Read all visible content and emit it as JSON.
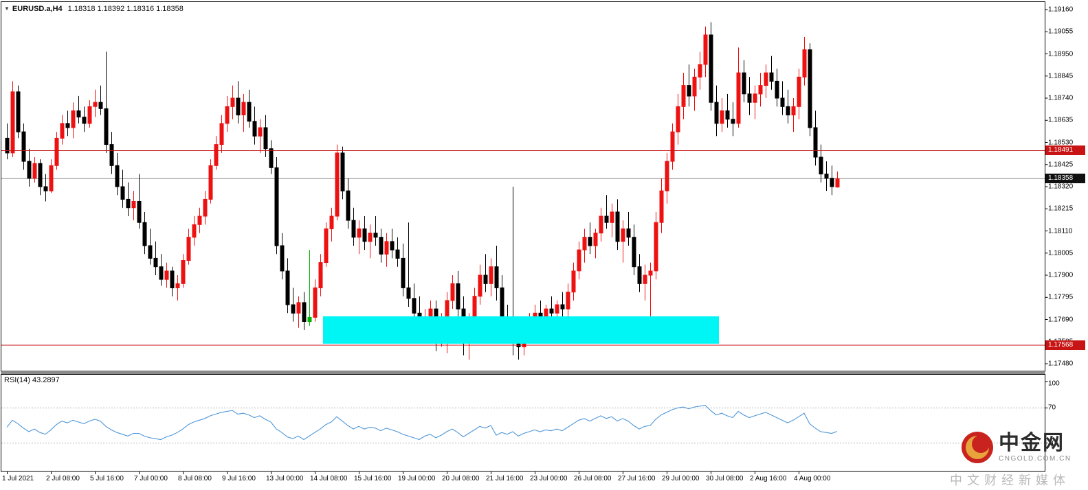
{
  "header": {
    "collapse_icon": "▼",
    "symbol": "EURUSD.a,H4",
    "ohlc": "1.18318 1.18392 1.18316 1.18358"
  },
  "chart_data": {
    "type": "candlestick",
    "title": "EURUSD.a H4 chart with RSI(14)",
    "y_range": [
      1.1748,
      1.1916
    ],
    "price_labels": [
      "1.19160",
      "1.19055",
      "1.18950",
      "1.18845",
      "1.18740",
      "1.18635",
      "1.18530",
      "1.18425",
      "1.18320",
      "1.18215",
      "1.18110",
      "1.18005",
      "1.17900",
      "1.17795",
      "1.17690",
      "1.17585",
      "1.17480"
    ],
    "price_badges": [
      {
        "name": "price-badge-resistance",
        "text": "1.18491",
        "color": "#C81414"
      },
      {
        "name": "price-badge-current",
        "text": "1.18358",
        "color": "#101010"
      },
      {
        "name": "price-badge-support",
        "text": "1.17568",
        "color": "#C81414"
      }
    ],
    "x_labels": [
      "1 Jul 2021",
      "2 Jul 08:00",
      "5 Jul 16:00",
      "7 Jul 00:00",
      "8 Jul 08:00",
      "9 Jul 16:00",
      "13 Jul 00:00",
      "14 Jul 08:00",
      "15 Jul 16:00",
      "19 Jul 00:00",
      "20 Jul 08:00",
      "21 Jul 16:00",
      "23 Jul 00:00",
      "26 Jul 08:00",
      "27 Jul 16:00",
      "29 Jul 00:00",
      "30 Jul 08:00",
      "2 Aug 16:00",
      "4 Aug 00:00"
    ],
    "x_label_step": 8,
    "up_color": "#EE1111",
    "down_color": "#000000",
    "special_colors": {
      "55": "#00B400"
    },
    "hlines": [
      {
        "role": "resistance",
        "value": 1.18491,
        "color": "#C81414"
      },
      {
        "role": "support",
        "value": 1.17568,
        "color": "#C81414"
      },
      {
        "role": "current",
        "value": 1.18358,
        "color": "#8A8A8A"
      }
    ],
    "zone": {
      "start_index": 58,
      "end_index": 129,
      "top": 1.17705,
      "bottom": 1.17575,
      "color": "#00F5F5"
    },
    "candles": [
      [
        1.1855,
        1.1862,
        1.1845,
        1.1848
      ],
      [
        1.1848,
        1.1882,
        1.1846,
        1.1877
      ],
      [
        1.1877,
        1.188,
        1.1855,
        1.1858
      ],
      [
        1.1858,
        1.1862,
        1.184,
        1.1844
      ],
      [
        1.1844,
        1.185,
        1.1832,
        1.1836
      ],
      [
        1.1836,
        1.1846,
        1.1834,
        1.1843
      ],
      [
        1.1843,
        1.1845,
        1.1828,
        1.1832
      ],
      [
        1.1832,
        1.1838,
        1.1825,
        1.183
      ],
      [
        1.183,
        1.1845,
        1.1829,
        1.1842
      ],
      [
        1.1842,
        1.1858,
        1.184,
        1.1855
      ],
      [
        1.1855,
        1.1866,
        1.1852,
        1.1862
      ],
      [
        1.1862,
        1.1868,
        1.1856,
        1.186
      ],
      [
        1.186,
        1.1872,
        1.1855,
        1.1868
      ],
      [
        1.1868,
        1.1875,
        1.1862,
        1.1865
      ],
      [
        1.1865,
        1.187,
        1.1858,
        1.1862
      ],
      [
        1.1862,
        1.1873,
        1.186,
        1.187
      ],
      [
        1.187,
        1.1878,
        1.1865,
        1.1872
      ],
      [
        1.1872,
        1.188,
        1.1866,
        1.1869
      ],
      [
        1.1869,
        1.1896,
        1.1848,
        1.1852
      ],
      [
        1.1852,
        1.1858,
        1.1838,
        1.1842
      ],
      [
        1.1842,
        1.1848,
        1.1828,
        1.1832
      ],
      [
        1.1832,
        1.184,
        1.1822,
        1.1826
      ],
      [
        1.1826,
        1.1834,
        1.1818,
        1.1822
      ],
      [
        1.1822,
        1.183,
        1.1816,
        1.1825
      ],
      [
        1.1825,
        1.1838,
        1.1812,
        1.1815
      ],
      [
        1.1815,
        1.182,
        1.18,
        1.1804
      ],
      [
        1.1804,
        1.1812,
        1.1795,
        1.1798
      ],
      [
        1.1798,
        1.1806,
        1.179,
        1.1794
      ],
      [
        1.1794,
        1.18,
        1.1785,
        1.1788
      ],
      [
        1.1788,
        1.1796,
        1.1784,
        1.1792
      ],
      [
        1.1792,
        1.1794,
        1.178,
        1.1784
      ],
      [
        1.1784,
        1.179,
        1.1778,
        1.1786
      ],
      [
        1.1786,
        1.18,
        1.1784,
        1.1797
      ],
      [
        1.1797,
        1.1812,
        1.1795,
        1.1808
      ],
      [
        1.1808,
        1.1818,
        1.1804,
        1.1814
      ],
      [
        1.1814,
        1.1822,
        1.181,
        1.1818
      ],
      [
        1.1818,
        1.183,
        1.1814,
        1.1826
      ],
      [
        1.1826,
        1.1845,
        1.1824,
        1.1842
      ],
      [
        1.1842,
        1.1856,
        1.184,
        1.1852
      ],
      [
        1.1852,
        1.1866,
        1.1848,
        1.1862
      ],
      [
        1.1862,
        1.1875,
        1.1858,
        1.187
      ],
      [
        1.187,
        1.188,
        1.1864,
        1.1874
      ],
      [
        1.1874,
        1.1882,
        1.1862,
        1.1866
      ],
      [
        1.1866,
        1.1876,
        1.1858,
        1.1872
      ],
      [
        1.1872,
        1.1878,
        1.186,
        1.1863
      ],
      [
        1.1863,
        1.187,
        1.1852,
        1.1856
      ],
      [
        1.1856,
        1.1864,
        1.1848,
        1.186
      ],
      [
        1.186,
        1.1866,
        1.1846,
        1.185
      ],
      [
        1.185,
        1.1854,
        1.1838,
        1.1841
      ],
      [
        1.1841,
        1.1846,
        1.18,
        1.1804
      ],
      [
        1.1804,
        1.181,
        1.1788,
        1.1792
      ],
      [
        1.1792,
        1.1798,
        1.1772,
        1.1776
      ],
      [
        1.1776,
        1.1784,
        1.1768,
        1.1772
      ],
      [
        1.1772,
        1.178,
        1.1765,
        1.1777
      ],
      [
        1.1777,
        1.1782,
        1.1764,
        1.1768
      ],
      [
        1.1768,
        1.1802,
        1.1766,
        1.177
      ],
      [
        1.177,
        1.1788,
        1.1768,
        1.1784
      ],
      [
        1.1784,
        1.18,
        1.178,
        1.1796
      ],
      [
        1.1796,
        1.1815,
        1.1794,
        1.1812
      ],
      [
        1.1812,
        1.1822,
        1.1806,
        1.1818
      ],
      [
        1.1818,
        1.1852,
        1.1816,
        1.1848
      ],
      [
        1.1848,
        1.1851,
        1.1826,
        1.183
      ],
      [
        1.183,
        1.1836,
        1.1812,
        1.1816
      ],
      [
        1.1816,
        1.1822,
        1.1804,
        1.1808
      ],
      [
        1.1808,
        1.1816,
        1.18,
        1.1812
      ],
      [
        1.1812,
        1.1818,
        1.1802,
        1.1806
      ],
      [
        1.1806,
        1.1814,
        1.1798,
        1.181
      ],
      [
        1.181,
        1.1818,
        1.1804,
        1.1808
      ],
      [
        1.1808,
        1.1812,
        1.1796,
        1.18
      ],
      [
        1.18,
        1.181,
        1.1794,
        1.1806
      ],
      [
        1.1806,
        1.1812,
        1.1798,
        1.1802
      ],
      [
        1.1802,
        1.1808,
        1.1794,
        1.1798
      ],
      [
        1.1798,
        1.1805,
        1.178,
        1.1784
      ],
      [
        1.1784,
        1.1815,
        1.1775,
        1.1779
      ],
      [
        1.1779,
        1.1786,
        1.1768,
        1.1772
      ],
      [
        1.1772,
        1.178,
        1.1762,
        1.1766
      ],
      [
        1.1766,
        1.1774,
        1.1758,
        1.177
      ],
      [
        1.177,
        1.1778,
        1.1764,
        1.1774
      ],
      [
        1.1774,
        1.1778,
        1.1754,
        1.176
      ],
      [
        1.176,
        1.1772,
        1.1756,
        1.1768
      ],
      [
        1.1768,
        1.1782,
        1.1753,
        1.1778
      ],
      [
        1.1778,
        1.179,
        1.1774,
        1.1786
      ],
      [
        1.1786,
        1.1792,
        1.177,
        1.1774
      ],
      [
        1.1774,
        1.178,
        1.1752,
        1.1758
      ],
      [
        1.1758,
        1.1772,
        1.175,
        1.1768
      ],
      [
        1.1768,
        1.1784,
        1.1764,
        1.178
      ],
      [
        1.178,
        1.1795,
        1.1776,
        1.179
      ],
      [
        1.179,
        1.18,
        1.1782,
        1.1786
      ],
      [
        1.1786,
        1.1798,
        1.178,
        1.1794
      ],
      [
        1.1794,
        1.1804,
        1.1778,
        1.1784
      ],
      [
        1.1784,
        1.179,
        1.1762,
        1.1768
      ],
      [
        1.1768,
        1.1776,
        1.176,
        1.1764
      ],
      [
        1.1764,
        1.1832,
        1.1752,
        1.176
      ],
      [
        1.176,
        1.177,
        1.175,
        1.1756
      ],
      [
        1.1756,
        1.1768,
        1.1752,
        1.1764
      ],
      [
        1.1764,
        1.1772,
        1.1758,
        1.1768
      ],
      [
        1.1768,
        1.1776,
        1.1762,
        1.1772
      ],
      [
        1.1772,
        1.1778,
        1.1766,
        1.177
      ],
      [
        1.177,
        1.1776,
        1.1764,
        1.1774
      ],
      [
        1.1774,
        1.178,
        1.1768,
        1.1772
      ],
      [
        1.1772,
        1.1778,
        1.1766,
        1.1776
      ],
      [
        1.1776,
        1.1782,
        1.177,
        1.1774
      ],
      [
        1.1774,
        1.1786,
        1.177,
        1.1782
      ],
      [
        1.1782,
        1.1796,
        1.1778,
        1.1792
      ],
      [
        1.1792,
        1.1806,
        1.1788,
        1.1802
      ],
      [
        1.1802,
        1.1812,
        1.1796,
        1.1808
      ],
      [
        1.1808,
        1.1815,
        1.18,
        1.1804
      ],
      [
        1.1804,
        1.1812,
        1.1798,
        1.181
      ],
      [
        1.181,
        1.1822,
        1.1806,
        1.1818
      ],
      [
        1.1818,
        1.1828,
        1.1812,
        1.1815
      ],
      [
        1.1815,
        1.1824,
        1.1808,
        1.182
      ],
      [
        1.182,
        1.1826,
        1.1802,
        1.1806
      ],
      [
        1.1806,
        1.1816,
        1.1796,
        1.1812
      ],
      [
        1.1812,
        1.182,
        1.1804,
        1.1808
      ],
      [
        1.1808,
        1.1814,
        1.179,
        1.1794
      ],
      [
        1.1794,
        1.18,
        1.1782,
        1.1786
      ],
      [
        1.1786,
        1.1795,
        1.1778,
        1.179
      ],
      [
        1.179,
        1.1796,
        1.177,
        1.1792
      ],
      [
        1.1792,
        1.182,
        1.1788,
        1.1815
      ],
      [
        1.1815,
        1.1836,
        1.181,
        1.183
      ],
      [
        1.183,
        1.1848,
        1.1824,
        1.1844
      ],
      [
        1.1844,
        1.1862,
        1.184,
        1.1858
      ],
      [
        1.1858,
        1.1876,
        1.1852,
        1.187
      ],
      [
        1.187,
        1.1886,
        1.1864,
        1.188
      ],
      [
        1.188,
        1.189,
        1.187,
        1.1875
      ],
      [
        1.1875,
        1.1888,
        1.1868,
        1.1884
      ],
      [
        1.1884,
        1.1896,
        1.1878,
        1.189
      ],
      [
        1.189,
        1.1908,
        1.1884,
        1.1904
      ],
      [
        1.1904,
        1.191,
        1.1868,
        1.1872
      ],
      [
        1.1872,
        1.188,
        1.1856,
        1.1862
      ],
      [
        1.1862,
        1.1874,
        1.1858,
        1.1868
      ],
      [
        1.1868,
        1.1876,
        1.186,
        1.1864
      ],
      [
        1.1864,
        1.1872,
        1.1856,
        1.1862
      ],
      [
        1.1862,
        1.1898,
        1.186,
        1.1886
      ],
      [
        1.1886,
        1.1892,
        1.1872,
        1.1876
      ],
      [
        1.1876,
        1.1884,
        1.1866,
        1.1872
      ],
      [
        1.1872,
        1.188,
        1.1864,
        1.1876
      ],
      [
        1.1876,
        1.1886,
        1.187,
        1.188
      ],
      [
        1.188,
        1.189,
        1.1874,
        1.1886
      ],
      [
        1.1886,
        1.1894,
        1.1878,
        1.1882
      ],
      [
        1.1882,
        1.1888,
        1.187,
        1.1874
      ],
      [
        1.1874,
        1.1882,
        1.1866,
        1.187
      ],
      [
        1.187,
        1.1878,
        1.1862,
        1.1866
      ],
      [
        1.1866,
        1.1874,
        1.1858,
        1.187
      ],
      [
        1.187,
        1.1888,
        1.1864,
        1.1884
      ],
      [
        1.1884,
        1.1903,
        1.188,
        1.1897
      ],
      [
        1.1897,
        1.19,
        1.1856,
        1.186
      ],
      [
        1.186,
        1.1868,
        1.1842,
        1.1846
      ],
      [
        1.1846,
        1.1852,
        1.1834,
        1.1838
      ],
      [
        1.1838,
        1.1844,
        1.183,
        1.1836
      ],
      [
        1.1836,
        1.1842,
        1.1828,
        1.1832
      ],
      [
        1.18318,
        1.18392,
        1.18316,
        1.18358
      ]
    ],
    "rsi": {
      "label": "RSI(14) 43.2897",
      "period": 14,
      "current": 43.2897,
      "levels": [
        100,
        70,
        30
      ],
      "line_color": "#4E96D9",
      "values": [
        48,
        56,
        52,
        47,
        43,
        46,
        42,
        40,
        45,
        51,
        55,
        53,
        56,
        54,
        52,
        55,
        57,
        55,
        49,
        45,
        42,
        40,
        38,
        41,
        41,
        38,
        36,
        35,
        34,
        37,
        39,
        42,
        46,
        51,
        54,
        56,
        58,
        61,
        63,
        65,
        66,
        67,
        63,
        64,
        62,
        59,
        61,
        57,
        54,
        46,
        42,
        37,
        35,
        38,
        34,
        38,
        42,
        46,
        51,
        54,
        60,
        55,
        50,
        46,
        49,
        46,
        48,
        47,
        44,
        47,
        45,
        43,
        40,
        38,
        36,
        34,
        38,
        40,
        36,
        39,
        43,
        46,
        42,
        37,
        41,
        45,
        49,
        47,
        50,
        39,
        42,
        40,
        43,
        38,
        41,
        43,
        45,
        43,
        45,
        44,
        46,
        44,
        48,
        52,
        56,
        58,
        55,
        58,
        61,
        58,
        60,
        55,
        58,
        55,
        50,
        46,
        49,
        50,
        57,
        62,
        65,
        68,
        70,
        71,
        69,
        71,
        72,
        73,
        67,
        62,
        64,
        61,
        59,
        66,
        62,
        59,
        61,
        63,
        65,
        62,
        59,
        56,
        53,
        56,
        60,
        64,
        52,
        47,
        43,
        42,
        41,
        43.2897
      ]
    }
  },
  "watermark": {
    "brand": "中金网",
    "url": "CNGOLD.COM.CN",
    "slogan": "中文财经新媒体"
  }
}
